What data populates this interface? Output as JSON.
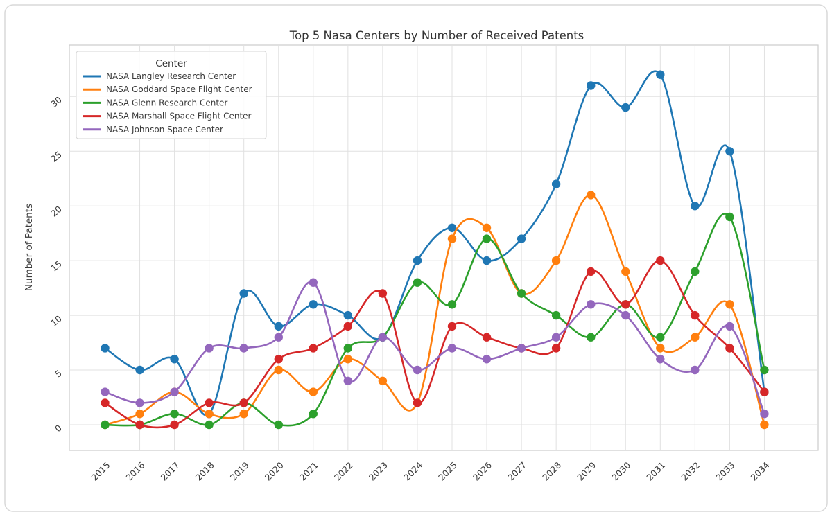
{
  "chart_data": {
    "type": "line",
    "title": "Top 5 Nasa Centers by Number of Received Patents",
    "ylabel": "Number of Patents",
    "xlabel": "",
    "legend_title": "Center",
    "legend_position": "upper left",
    "grid": true,
    "marker": "circle",
    "smooth": true,
    "categories": [
      "2015",
      "2016",
      "2017",
      "2018",
      "2019",
      "2020",
      "2021",
      "2022",
      "2023",
      "2024",
      "2025",
      "2026",
      "2027",
      "2028",
      "2029",
      "2030",
      "2031",
      "2032",
      "2033",
      "2034"
    ],
    "yticks": [
      0,
      5,
      10,
      15,
      20,
      25,
      30
    ],
    "ylim": [
      -2.3,
      34.7
    ],
    "series": [
      {
        "name": "NASA Langley Research Center",
        "color": "#1f77b4",
        "values": [
          7,
          5,
          6,
          1,
          12,
          9,
          11,
          10,
          8,
          15,
          18,
          15,
          17,
          22,
          31,
          29,
          32,
          20,
          25,
          3
        ]
      },
      {
        "name": "NASA Goddard Space Flight Center",
        "color": "#ff7f0e",
        "values": [
          0,
          1,
          3,
          1,
          1,
          5,
          3,
          6,
          4,
          2,
          17,
          18,
          12,
          15,
          21,
          14,
          7,
          8,
          11,
          0
        ]
      },
      {
        "name": "NASA Glenn Research Center",
        "color": "#2ca02c",
        "values": [
          0,
          0,
          1,
          0,
          2,
          0,
          1,
          7,
          8,
          13,
          11,
          17,
          12,
          10,
          8,
          11,
          8,
          14,
          19,
          5
        ]
      },
      {
        "name": "NASA Marshall Space Flight Center",
        "color": "#d62728",
        "values": [
          2,
          0,
          0,
          2,
          2,
          6,
          7,
          9,
          12,
          2,
          9,
          8,
          7,
          7,
          14,
          11,
          15,
          10,
          7,
          3
        ]
      },
      {
        "name": "NASA Johnson Space Center",
        "color": "#9467bd",
        "values": [
          3,
          2,
          3,
          7,
          7,
          8,
          13,
          4,
          8,
          5,
          7,
          6,
          7,
          8,
          11,
          10,
          6,
          5,
          9,
          1
        ]
      }
    ]
  }
}
